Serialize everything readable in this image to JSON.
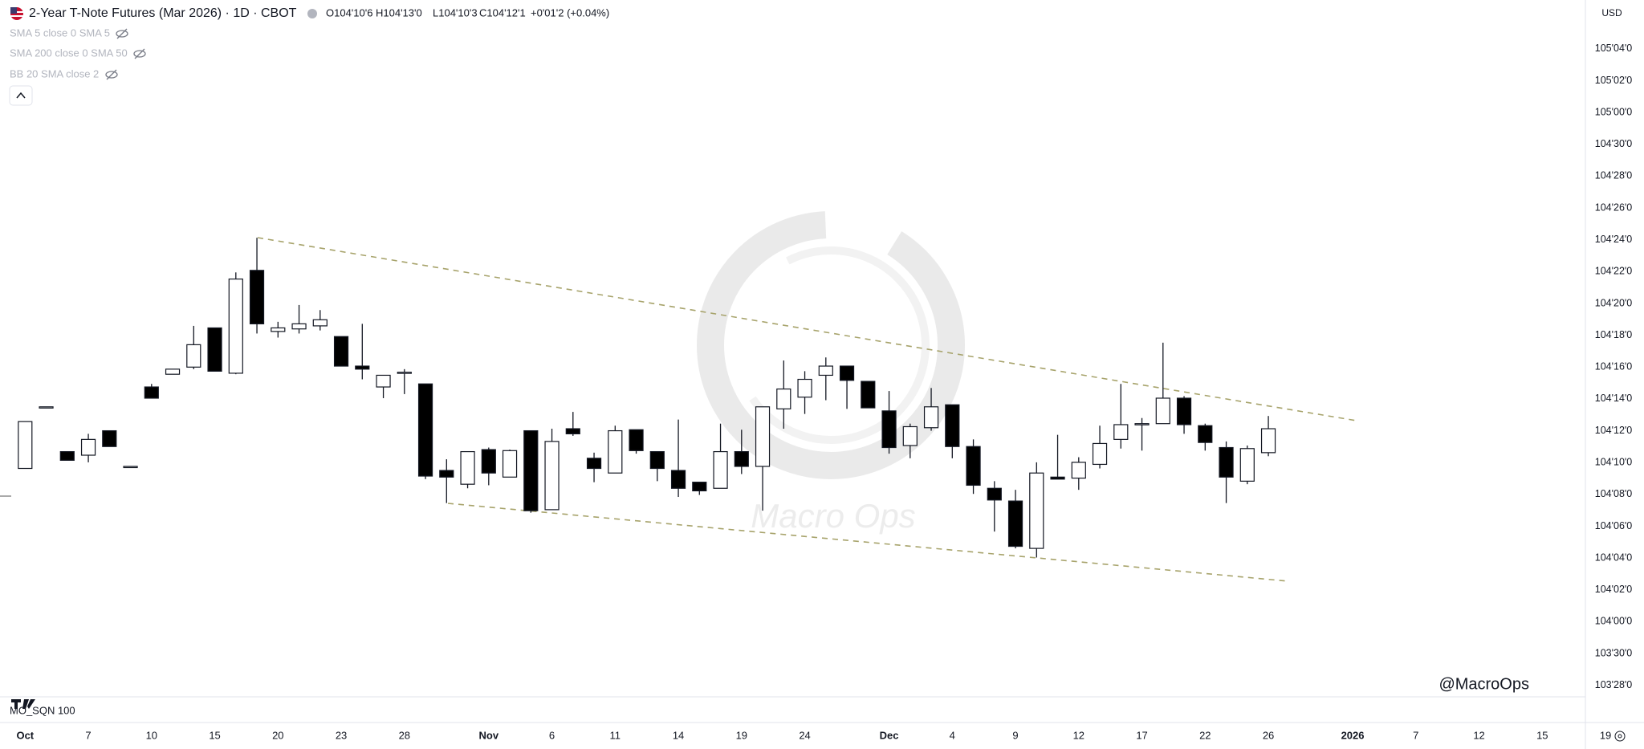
{
  "chart_data": {
    "type": "candlestick",
    "title": "2-Year T-Note Futures (Mar 2026) · 1D · CBOT",
    "legend_values": [
      "O104'10'6",
      "H104'13'0",
      "L104'10'3",
      "C104'12'1",
      "+0'01'2 (+0.04%)"
    ],
    "indicators": [
      "SMA 5 close 0 SMA 5",
      "SMA 200 close 0 SMA 50",
      "BB 20 SMA close 2"
    ],
    "currency": "USD",
    "watermark": "Macro Ops",
    "annotation": "@MacroOps",
    "pane_label": "MO_SQN 100",
    "up_color": "#ffffff",
    "down_color": "#000000",
    "open": [
      104.301,
      104.422,
      104.334,
      104.327,
      104.375,
      104.305,
      104.461,
      104.486,
      104.5,
      104.577,
      104.488,
      104.69,
      104.57,
      104.575,
      104.581,
      104.56,
      104.502,
      104.461,
      104.49,
      104.467,
      104.297,
      104.27,
      104.338,
      104.284,
      104.375,
      104.22,
      104.379,
      104.321,
      104.292,
      104.377,
      104.334,
      104.297,
      104.274,
      104.262,
      104.334,
      104.305,
      104.418,
      104.441,
      104.484,
      104.502,
      104.472,
      104.414,
      104.346,
      104.381,
      104.426,
      104.344,
      104.262,
      104.237,
      104.144,
      104.284,
      104.282,
      104.309,
      104.358,
      104.389,
      104.389,
      104.439,
      104.385,
      104.342,
      104.276,
      104.332
    ],
    "high": [
      104.393,
      104.422,
      104.334,
      104.369,
      104.375,
      104.305,
      104.467,
      104.496,
      104.581,
      104.577,
      104.686,
      104.754,
      104.589,
      104.622,
      104.612,
      104.56,
      104.585,
      104.484,
      104.496,
      104.467,
      104.319,
      104.334,
      104.342,
      104.338,
      104.375,
      104.379,
      104.412,
      104.332,
      104.385,
      104.377,
      104.334,
      104.397,
      104.274,
      104.389,
      104.377,
      104.422,
      104.513,
      104.492,
      104.519,
      104.502,
      104.472,
      104.453,
      104.389,
      104.459,
      104.426,
      104.358,
      104.276,
      104.259,
      104.313,
      104.367,
      104.323,
      104.385,
      104.467,
      104.4,
      104.548,
      104.443,
      104.389,
      104.354,
      104.346,
      104.404
    ],
    "low": [
      104.301,
      104.422,
      104.317,
      104.313,
      104.344,
      104.305,
      104.439,
      104.486,
      104.496,
      104.492,
      104.486,
      104.566,
      104.558,
      104.566,
      104.572,
      104.502,
      104.476,
      104.439,
      104.447,
      104.28,
      104.233,
      104.262,
      104.268,
      104.284,
      104.214,
      104.22,
      104.365,
      104.274,
      104.292,
      104.33,
      104.276,
      104.245,
      104.249,
      104.262,
      104.29,
      104.218,
      104.379,
      104.408,
      104.435,
      104.418,
      104.42,
      104.33,
      104.321,
      104.375,
      104.321,
      104.251,
      104.177,
      104.144,
      104.126,
      104.28,
      104.259,
      104.301,
      104.34,
      104.336,
      104.389,
      104.369,
      104.336,
      104.233,
      104.27,
      104.325
    ],
    "close": [
      104.393,
      104.422,
      104.317,
      104.358,
      104.344,
      104.305,
      104.439,
      104.496,
      104.544,
      104.492,
      104.673,
      104.585,
      104.577,
      104.585,
      104.593,
      104.502,
      104.496,
      104.484,
      104.49,
      104.286,
      104.284,
      104.334,
      104.292,
      104.336,
      104.218,
      104.354,
      104.369,
      104.301,
      104.375,
      104.336,
      104.301,
      104.262,
      104.257,
      104.334,
      104.305,
      104.422,
      104.457,
      104.476,
      104.502,
      104.474,
      104.42,
      104.342,
      104.383,
      104.422,
      104.344,
      104.268,
      104.239,
      104.148,
      104.292,
      104.28,
      104.313,
      104.35,
      104.387,
      104.389,
      104.439,
      104.387,
      104.352,
      104.284,
      104.34,
      104.379
    ],
    "ylim": [
      103.802,
      105.221
    ],
    "yticks": [
      {
        "value": 103.875,
        "label": "103'28'0"
      },
      {
        "value": 103.9375,
        "label": "103'30'0"
      },
      {
        "value": 104.0,
        "label": "104'00'0"
      },
      {
        "value": 104.0625,
        "label": "104'02'0"
      },
      {
        "value": 104.125,
        "label": "104'04'0"
      },
      {
        "value": 104.1875,
        "label": "104'06'0"
      },
      {
        "value": 104.25,
        "label": "104'08'0"
      },
      {
        "value": 104.3125,
        "label": "104'10'0"
      },
      {
        "value": 104.375,
        "label": "104'12'0"
      },
      {
        "value": 104.4375,
        "label": "104'14'0"
      },
      {
        "value": 104.5,
        "label": "104'16'0"
      },
      {
        "value": 104.5625,
        "label": "104'18'0"
      },
      {
        "value": 104.625,
        "label": "104'20'0"
      },
      {
        "value": 104.6875,
        "label": "104'22'0"
      },
      {
        "value": 104.75,
        "label": "104'24'0"
      },
      {
        "value": 104.8125,
        "label": "104'26'0"
      },
      {
        "value": 104.875,
        "label": "104'28'0"
      },
      {
        "value": 104.9375,
        "label": "104'30'0"
      },
      {
        "value": 105.0,
        "label": "105'00'0"
      },
      {
        "value": 105.0625,
        "label": "105'02'0"
      },
      {
        "value": 105.125,
        "label": "105'04'0"
      }
    ],
    "xticks": [
      {
        "value": 0,
        "label": "Oct"
      },
      {
        "value": 3,
        "label": "7"
      },
      {
        "value": 6,
        "label": "10"
      },
      {
        "value": 9,
        "label": "15"
      },
      {
        "value": 12,
        "label": "20"
      },
      {
        "value": 15,
        "label": "23"
      },
      {
        "value": 18,
        "label": "28"
      },
      {
        "value": 22,
        "label": "Nov"
      },
      {
        "value": 25,
        "label": "6"
      },
      {
        "value": 28,
        "label": "11"
      },
      {
        "value": 31,
        "label": "14"
      },
      {
        "value": 34,
        "label": "19"
      },
      {
        "value": 37,
        "label": "24"
      },
      {
        "value": 41,
        "label": "Dec"
      },
      {
        "value": 44,
        "label": "4"
      },
      {
        "value": 47,
        "label": "9"
      },
      {
        "value": 50,
        "label": "12"
      },
      {
        "value": 53,
        "label": "17"
      },
      {
        "value": 56,
        "label": "22"
      },
      {
        "value": 59,
        "label": "26"
      },
      {
        "value": 63,
        "label": "2026"
      },
      {
        "value": 66,
        "label": "7"
      },
      {
        "value": 69,
        "label": "12"
      },
      {
        "value": 72,
        "label": "15"
      },
      {
        "value": 75,
        "label": "19"
      }
    ]
  }
}
